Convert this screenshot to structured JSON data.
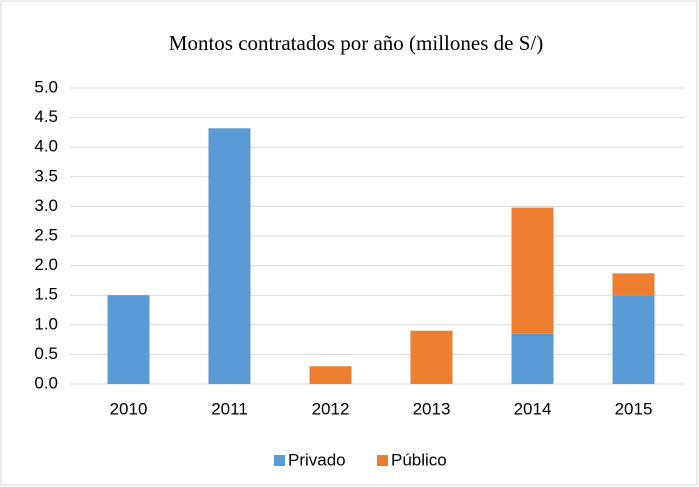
{
  "chart_data": {
    "type": "stacked_bar",
    "title": "Montos contratados por año (millones de S/)",
    "categories": [
      "2010",
      "2011",
      "2012",
      "2013",
      "2014",
      "2015"
    ],
    "series": [
      {
        "name": "Privado",
        "color": "#5b9bd5",
        "values": [
          1.5,
          4.32,
          0,
          0,
          0.85,
          1.5
        ]
      },
      {
        "name": "Público",
        "color": "#ed7d31",
        "values": [
          0,
          0,
          0.3,
          0.9,
          2.13,
          0.37
        ]
      }
    ],
    "ylim": [
      0,
      5
    ],
    "yticks": [
      {
        "value": 0,
        "label": "0.0"
      },
      0.5,
      {
        "value": 1,
        "label": "1.0"
      },
      1.5,
      {
        "value": 2,
        "label": "2.0"
      },
      2.5,
      {
        "value": 3,
        "label": "3.0"
      },
      3.5,
      {
        "value": 4,
        "label": "4.0"
      },
      4.5,
      {
        "value": 5,
        "label": "5.0"
      }
    ],
    "grid": true,
    "legend": "bottom"
  }
}
